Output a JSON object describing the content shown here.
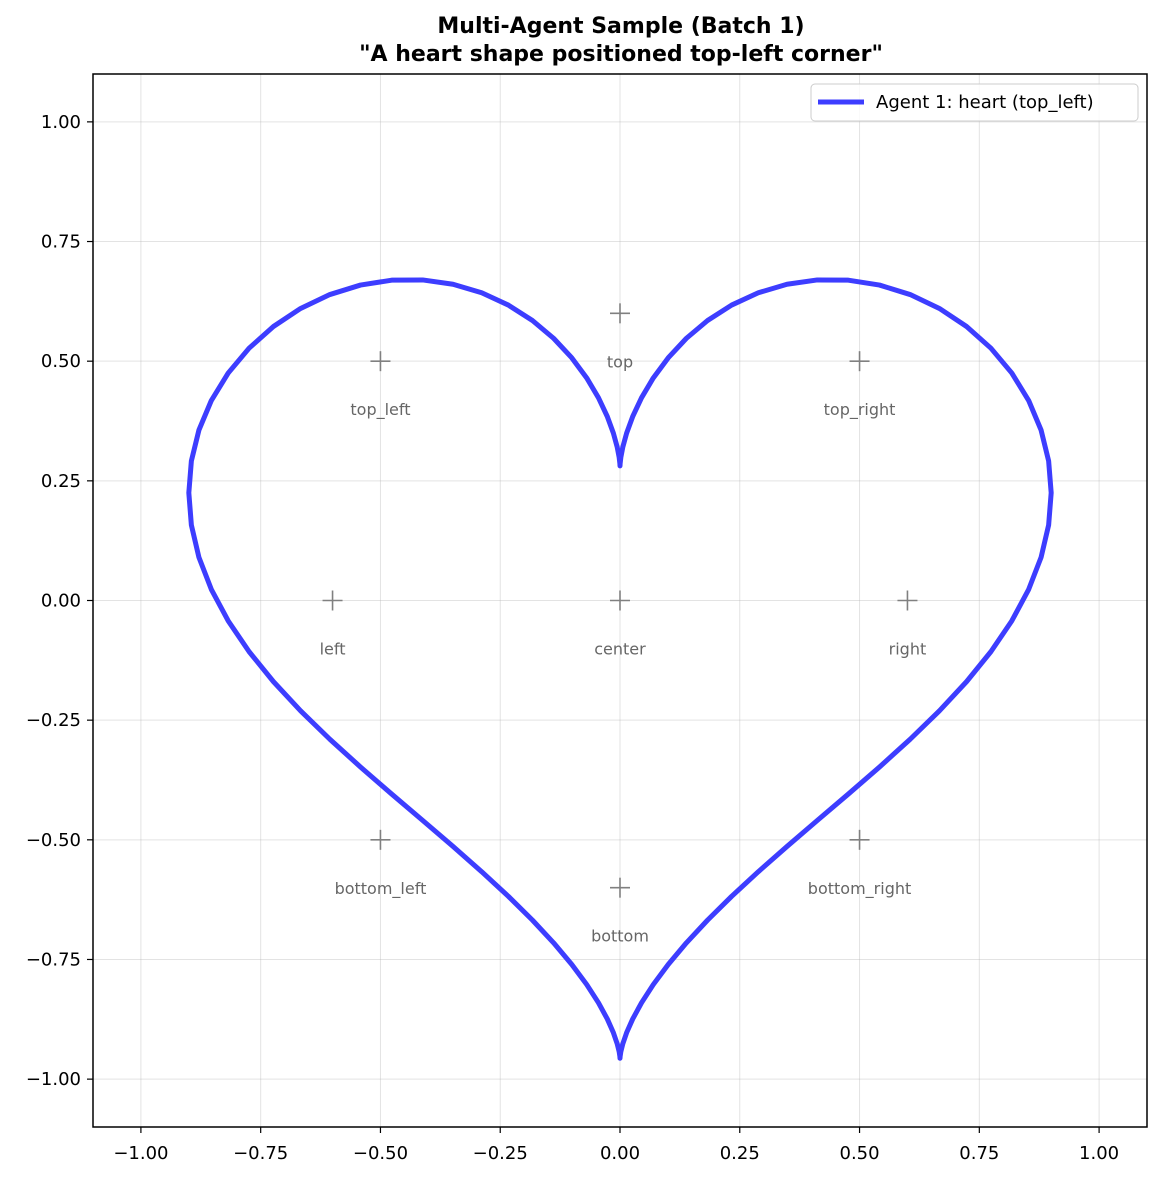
{
  "chart_data": {
    "type": "line",
    "title_line1": "Multi-Agent Sample (Batch 1)",
    "title_line2": "\"A heart shape positioned top-left corner\"",
    "xlabel": "",
    "ylabel": "",
    "xlim": [
      -1.1,
      1.1
    ],
    "ylim": [
      -1.1,
      1.1
    ],
    "xticks": [
      -1.0,
      -0.75,
      -0.5,
      -0.25,
      0.0,
      0.25,
      0.5,
      0.75,
      1.0
    ],
    "yticks": [
      -1.0,
      -0.75,
      -0.5,
      -0.25,
      0.0,
      0.25,
      0.5,
      0.75,
      1.0
    ],
    "xtick_labels": [
      "−1.00",
      "−0.75",
      "−0.50",
      "−0.25",
      "0.00",
      "0.25",
      "0.50",
      "0.75",
      "1.00"
    ],
    "ytick_labels": [
      "−1.00",
      "−0.75",
      "−0.50",
      "−0.25",
      "0.00",
      "0.25",
      "0.50",
      "0.75",
      "1.00"
    ],
    "grid": true,
    "legend_position": "top-right",
    "series": [
      {
        "name": "Agent 1: heart (top_left)",
        "color": "#3333ff",
        "shape": "heart",
        "center": [
          0.0,
          0.0
        ],
        "scale": 0.9
      }
    ],
    "anchors": [
      {
        "label": "top_left",
        "x": -0.5,
        "y": 0.5
      },
      {
        "label": "top",
        "x": 0.0,
        "y": 0.6
      },
      {
        "label": "top_right",
        "x": 0.5,
        "y": 0.5
      },
      {
        "label": "left",
        "x": -0.6,
        "y": 0.0
      },
      {
        "label": "center",
        "x": 0.0,
        "y": 0.0
      },
      {
        "label": "right",
        "x": 0.6,
        "y": 0.0
      },
      {
        "label": "bottom_left",
        "x": -0.5,
        "y": -0.5
      },
      {
        "label": "bottom",
        "x": 0.0,
        "y": -0.6
      },
      {
        "label": "bottom_right",
        "x": 0.5,
        "y": -0.5
      }
    ],
    "anchor_color": "#808080"
  }
}
